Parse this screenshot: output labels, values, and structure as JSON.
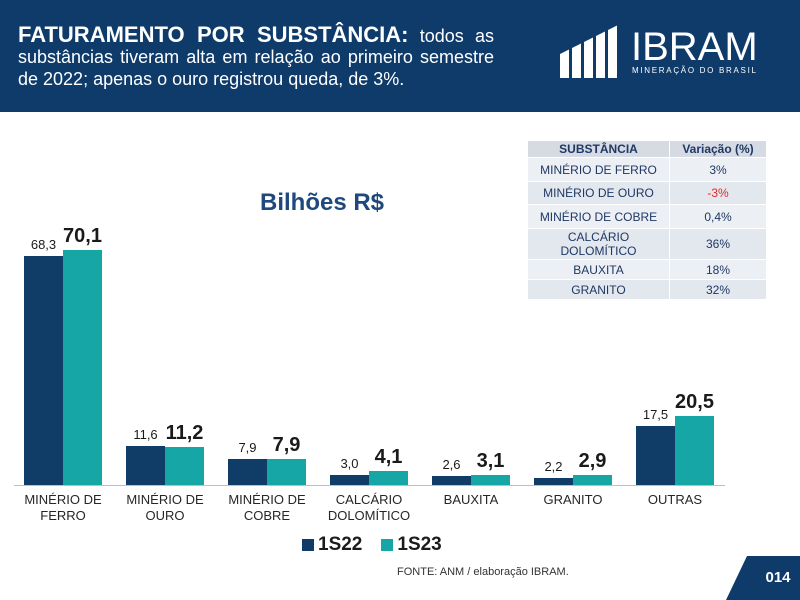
{
  "header": {
    "title_bold": "FATURAMENTO POR SUBSTÂNCIA:",
    "title_lines": [
      "todos as",
      "substâncias tiveram alta em relação ao primeiro semestre",
      "de 2022; apenas o ouro registrou queda, de 3%."
    ]
  },
  "logo": {
    "icon": "ibram-logo-icon",
    "name": "IBRAM",
    "tagline": "MINERAÇÃO DO BRASIL"
  },
  "colors": {
    "header_bg": "#0e3b6a",
    "chart_title": "#1f497d",
    "table_text": "#1f3864",
    "negative": "#e02a2a"
  },
  "chart_data": {
    "type": "bar",
    "title": "Bilhões R$",
    "xlabel": "",
    "ylabel": "",
    "grid": false,
    "legend": "bottom-center",
    "categories": [
      "MINÉRIO DE FERRO",
      "MINÉRIO DE OURO",
      "MINÉRIO DE COBRE",
      "CALCÁRIO DOLOMÍTICO",
      "BAUXITA",
      "GRANITO",
      "OUTRAS"
    ],
    "series": [
      {
        "name": "1S22",
        "color": "#103d68",
        "values": [
          68.3,
          11.6,
          7.9,
          3.0,
          2.6,
          2.2,
          17.5
        ],
        "labels": [
          "68,3",
          "11,6",
          "7,9",
          "3,0",
          "2,6",
          "2,2",
          "17,5"
        ]
      },
      {
        "name": "1S23",
        "color": "#16a6a6",
        "values": [
          70.1,
          11.2,
          7.9,
          4.1,
          3.1,
          2.9,
          20.5
        ],
        "labels": [
          "70,1",
          "11,2",
          "7,9",
          "4,1",
          "3,1",
          "2,9",
          "20,5"
        ]
      }
    ]
  },
  "table": {
    "headers": [
      "SUBSTÂNCIA",
      "Variação (%)"
    ],
    "rows": [
      {
        "substance": "MINÉRIO DE FERRO",
        "variation": "3%"
      },
      {
        "substance": "MINÉRIO DE OURO",
        "variation": "-3%"
      },
      {
        "substance": "MINÉRIO DE COBRE",
        "variation": "0,4%"
      },
      {
        "substance": "CALCÁRIO DOLOMÍTICO",
        "variation": "36%"
      },
      {
        "substance": "BAUXITA",
        "variation": "18%"
      },
      {
        "substance": "GRANITO",
        "variation": "32%"
      }
    ]
  },
  "footer": {
    "source": "FONTE: ANM / elaboração IBRAM.",
    "page": "014"
  }
}
